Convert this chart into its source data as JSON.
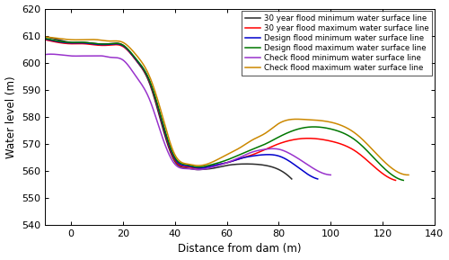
{
  "title": "",
  "xlabel": "Distance from dam (m)",
  "ylabel": "Water level (m)",
  "xlim": [
    -10,
    135
  ],
  "ylim": [
    540,
    620
  ],
  "xticks": [
    0,
    20,
    40,
    60,
    80,
    100,
    120,
    140
  ],
  "yticks": [
    540,
    550,
    560,
    570,
    580,
    590,
    600,
    610,
    620
  ],
  "legend_loc": "upper right",
  "figsize": [
    5.0,
    2.89
  ],
  "dpi": 100,
  "lines": [
    {
      "label": "30 year flood minimum water surface line",
      "color": "#2b2b2b",
      "x": [
        -10,
        -5,
        0,
        5,
        10,
        15,
        20,
        25,
        30,
        35,
        40,
        45,
        48,
        50,
        55,
        60,
        65,
        70,
        75,
        80,
        85
      ],
      "y": [
        609.5,
        608.5,
        607.5,
        607.5,
        607.0,
        607.0,
        606.5,
        601.0,
        593.0,
        577.0,
        563.5,
        561.0,
        560.5,
        560.5,
        561.0,
        562.0,
        562.5,
        562.5,
        562.0,
        560.5,
        557.0
      ]
    },
    {
      "label": "30 year flood maximum water surface line",
      "color": "#ff0000",
      "x": [
        -10,
        -5,
        0,
        5,
        10,
        15,
        20,
        25,
        30,
        35,
        40,
        45,
        48,
        50,
        55,
        60,
        65,
        70,
        75,
        80,
        90,
        100,
        110,
        120,
        125
      ],
      "y": [
        608.5,
        607.5,
        607.0,
        607.0,
        606.5,
        606.5,
        606.0,
        601.0,
        593.5,
        578.0,
        564.0,
        561.5,
        561.0,
        561.0,
        562.0,
        563.0,
        564.5,
        566.0,
        568.0,
        570.0,
        572.0,
        571.0,
        567.0,
        559.0,
        556.5
      ]
    },
    {
      "label": "Design flood minimum water surface line",
      "color": "#0000cc",
      "x": [
        -10,
        -5,
        0,
        5,
        10,
        15,
        20,
        25,
        30,
        35,
        40,
        45,
        48,
        50,
        55,
        60,
        65,
        70,
        75,
        80,
        85,
        90,
        95
      ],
      "y": [
        608.8,
        607.8,
        607.3,
        607.3,
        606.8,
        606.8,
        606.3,
        601.2,
        593.8,
        578.5,
        564.5,
        561.8,
        561.2,
        561.0,
        562.0,
        563.0,
        564.5,
        565.5,
        566.0,
        565.5,
        563.0,
        559.5,
        557.0
      ]
    },
    {
      "label": "Design flood maximum water surface line",
      "color": "#007700",
      "x": [
        -10,
        -5,
        0,
        5,
        10,
        15,
        20,
        25,
        30,
        35,
        40,
        45,
        48,
        50,
        55,
        60,
        65,
        70,
        75,
        80,
        90,
        100,
        110,
        120,
        128
      ],
      "y": [
        609.0,
        608.0,
        607.5,
        607.5,
        607.0,
        607.0,
        606.5,
        601.5,
        594.0,
        579.0,
        565.0,
        562.2,
        561.5,
        561.5,
        562.5,
        564.0,
        566.0,
        568.0,
        570.0,
        572.5,
        576.0,
        575.5,
        571.0,
        561.5,
        556.5
      ]
    },
    {
      "label": "Check flood minimum water surface line",
      "color": "#9933cc",
      "x": [
        -10,
        -5,
        0,
        5,
        8,
        10,
        12,
        15,
        20,
        25,
        30,
        35,
        40,
        45,
        48,
        50,
        55,
        60,
        65,
        70,
        75,
        80,
        85,
        90,
        95,
        100
      ],
      "y": [
        603.0,
        603.0,
        602.5,
        602.5,
        602.5,
        602.5,
        602.5,
        602.0,
        601.0,
        595.0,
        587.0,
        573.0,
        562.5,
        560.8,
        560.5,
        560.5,
        561.5,
        563.0,
        565.0,
        567.0,
        568.0,
        568.0,
        566.0,
        563.0,
        560.0,
        558.5
      ]
    },
    {
      "label": "Check flood maximum water surface line",
      "color": "#cc8800",
      "x": [
        -10,
        -5,
        0,
        5,
        10,
        15,
        20,
        25,
        30,
        35,
        40,
        45,
        48,
        50,
        55,
        60,
        65,
        70,
        75,
        80,
        90,
        100,
        110,
        120,
        130
      ],
      "y": [
        609.5,
        609.0,
        608.5,
        608.5,
        608.5,
        608.0,
        607.5,
        603.0,
        595.5,
        581.0,
        566.0,
        562.5,
        562.0,
        562.0,
        563.5,
        566.0,
        568.5,
        571.5,
        574.0,
        577.5,
        579.0,
        578.0,
        573.5,
        564.0,
        558.5
      ]
    }
  ]
}
